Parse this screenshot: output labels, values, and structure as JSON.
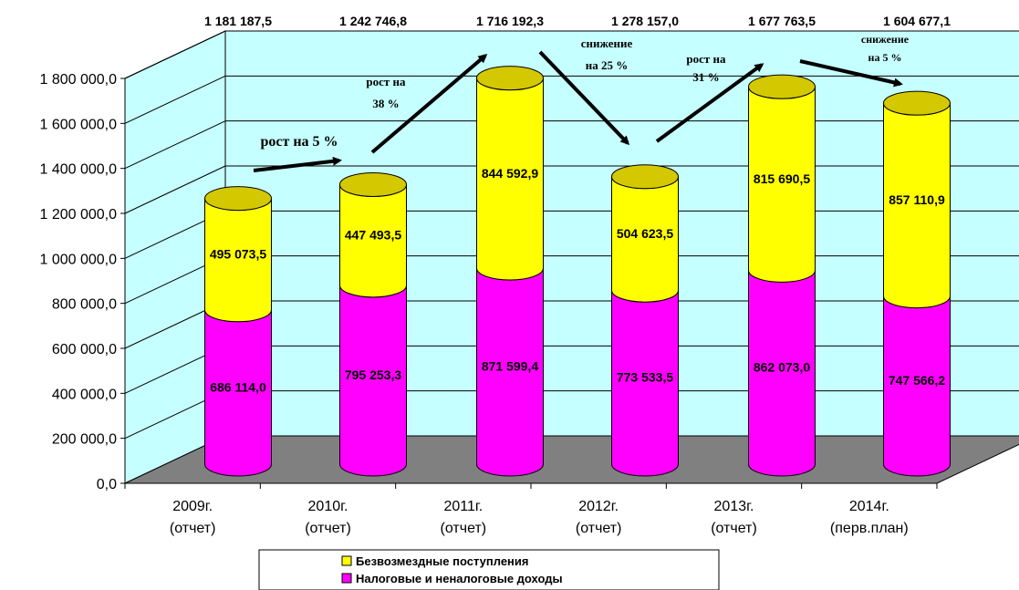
{
  "chart_data": {
    "type": "bar",
    "stacked": true,
    "style": "3d-cylinder",
    "categories": [
      [
        "2009г.",
        "(отчет)"
      ],
      [
        "2010г.",
        "(отчет)"
      ],
      [
        "2011г.",
        "(отчет)"
      ],
      [
        "2012г.",
        "(отчет)"
      ],
      [
        "2013г.",
        "(отчет)"
      ],
      [
        "2014г.",
        "(перв.план)"
      ]
    ],
    "series": [
      {
        "name": "Налоговые и неналоговые доходы",
        "color": "#FF00FF",
        "labels": [
          "686 114,0",
          "795 253,3",
          "871 599,4",
          "773 533,5",
          "862 073,0",
          "747 566,2"
        ],
        "values": [
          686114.0,
          795253.3,
          871599.4,
          773533.5,
          862073.0,
          747566.2
        ]
      },
      {
        "name": "Безвозмездные поступления",
        "color": "#FFFF00",
        "labels": [
          "495 073,5",
          "447 493,5",
          "844 592,9",
          "504 623,5",
          "815 690,5",
          "857 110,9"
        ],
        "values": [
          495073.5,
          447493.5,
          844592.9,
          504623.5,
          815690.5,
          857110.9
        ]
      }
    ],
    "totals": [
      "1 181 187,5",
      "1 242 746,8",
      "1 716 192,3",
      "1 278 157,0",
      "1 677 763,5",
      "1 604 677,1"
    ],
    "y_ticks": [
      "0,0",
      "200 000,0",
      "400 000,0",
      "600 000,0",
      "800 000,0",
      "1 000 000,0",
      "1 200 000,0",
      "1 400 000,0",
      "1 600 000,0",
      "1 800 000,0"
    ],
    "ylim": [
      0,
      1800000
    ],
    "grid": true,
    "legend_position": "bottom",
    "annotations": [
      {
        "lines": [
          "рост на 5 %"
        ]
      },
      {
        "lines": [
          "рост на",
          "38 %"
        ]
      },
      {
        "lines": [
          "снижение",
          "на 25 %"
        ]
      },
      {
        "lines": [
          "рост на",
          "31 %"
        ]
      },
      {
        "lines": [
          "снижение",
          "на 5 %"
        ]
      }
    ],
    "colors": {
      "wall": "#C6FFFF",
      "floor": "#808080",
      "arrow": "#000000"
    }
  }
}
